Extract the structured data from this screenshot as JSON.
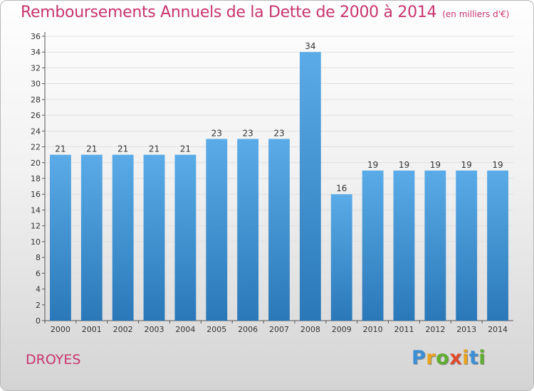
{
  "title": "Remboursements Annuels de la Dette de 2000 à 2014",
  "unit_note": "(en milliers d'€)",
  "commune": "DROYES",
  "logo": {
    "letters": [
      "P",
      "r",
      "o",
      "x",
      "i",
      "t",
      "i"
    ],
    "colors": [
      "#3b8fd6",
      "#e8a21c",
      "#5fae2f",
      "#e04a2c",
      "#e8a21c",
      "#3b8fd6",
      "#5fae2f"
    ]
  },
  "colors": {
    "bar_top": "#5aabe8",
    "bar_bottom": "#2a78b8",
    "grid": "#e0e0e0",
    "axis_text": "#333333",
    "title": "#c8336e"
  },
  "chart_data": {
    "type": "bar",
    "title": "Remboursements Annuels de la Dette de 2000 à 2014",
    "xlabel": "",
    "ylabel": "",
    "categories": [
      "2000",
      "2001",
      "2002",
      "2003",
      "2004",
      "2005",
      "2006",
      "2007",
      "2008",
      "2009",
      "2010",
      "2011",
      "2012",
      "2013",
      "2014"
    ],
    "values": [
      21,
      21,
      21,
      21,
      21,
      23,
      23,
      23,
      34,
      16,
      19,
      19,
      19,
      19,
      19
    ],
    "ylim": [
      0,
      36
    ],
    "yticks": [
      0,
      2,
      4,
      6,
      8,
      10,
      12,
      14,
      16,
      18,
      20,
      22,
      24,
      26,
      28,
      30,
      32,
      34,
      36
    ],
    "grid": true,
    "data_labels": true
  }
}
